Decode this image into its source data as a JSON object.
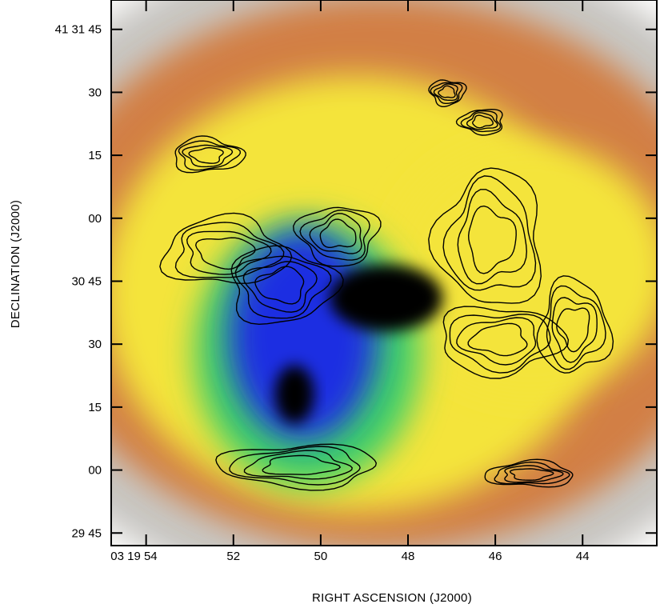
{
  "chart_data": {
    "type": "heatmap",
    "title": "",
    "xlabel": "RIGHT ASCENSION (J2000)",
    "ylabel": "DECLINATION (J2000)",
    "x_ticks": [
      {
        "label": "03 19 54",
        "ra_s": 54
      },
      {
        "label": "52",
        "ra_s": 52
      },
      {
        "label": "50",
        "ra_s": 50
      },
      {
        "label": "48",
        "ra_s": 48
      },
      {
        "label": "46",
        "ra_s": 46
      },
      {
        "label": "44",
        "ra_s": 44
      }
    ],
    "y_ticks": [
      {
        "label": "41 31 45",
        "dec_s": 105
      },
      {
        "label": "30",
        "dec_s": 90
      },
      {
        "label": "15",
        "dec_s": 75
      },
      {
        "label": "00",
        "dec_s": 60
      },
      {
        "label": "30 45",
        "dec_s": 45
      },
      {
        "label": "30",
        "dec_s": 30
      },
      {
        "label": "15",
        "dec_s": 15
      },
      {
        "label": "00",
        "dec_s": 0
      },
      {
        "label": "29 45",
        "dec_s": -15
      }
    ],
    "xlim": [
      54.8,
      42.3
    ],
    "ylim": [
      -18,
      112
    ],
    "colors": {
      "background": "#ffffff",
      "faint": "#c8c6c2",
      "outer": "#d27f45",
      "middle": "#f4e43a",
      "inner": "#3dd06a",
      "core": "#1f2fe2",
      "peak": "#000000",
      "contour": "#000000"
    },
    "emission_blobs": [
      {
        "ra": 48.6,
        "dec": 47,
        "rx": 9.5,
        "ry": 80,
        "level": "faint"
      },
      {
        "ra": 48.6,
        "dec": 47,
        "rx": 8.0,
        "ry": 66,
        "level": "outer"
      },
      {
        "ra": 49.2,
        "dec": 42,
        "rx": 5.8,
        "ry": 52,
        "level": "middle"
      },
      {
        "ra": 45.2,
        "dec": 48,
        "rx": 3.2,
        "ry": 30,
        "level": "middle"
      },
      {
        "ra": 50.3,
        "dec": 28,
        "rx": 2.6,
        "ry": 32,
        "level": "inner"
      },
      {
        "ra": 50.4,
        "dec": 32,
        "rx": 1.7,
        "ry": 25,
        "level": "core"
      },
      {
        "ra": 48.5,
        "dec": 41,
        "rx": 1.3,
        "ry": 8,
        "level": "peak"
      },
      {
        "ra": 50.6,
        "dec": 18,
        "rx": 0.45,
        "ry": 7,
        "level": "peak"
      }
    ],
    "contour_regions": [
      {
        "ra": 52.2,
        "dec": 52,
        "rx": 1.4,
        "ry": 8
      },
      {
        "ra": 50.9,
        "dec": 44,
        "rx": 1.2,
        "ry": 9
      },
      {
        "ra": 49.6,
        "dec": 56,
        "rx": 0.9,
        "ry": 7
      },
      {
        "ra": 46.1,
        "dec": 55,
        "rx": 1.2,
        "ry": 16
      },
      {
        "ra": 44.2,
        "dec": 34,
        "rx": 0.8,
        "ry": 11
      },
      {
        "ra": 45.9,
        "dec": 31,
        "rx": 1.4,
        "ry": 8
      },
      {
        "ra": 50.5,
        "dec": 1,
        "rx": 1.8,
        "ry": 5
      },
      {
        "ra": 45.2,
        "dec": -1,
        "rx": 1.0,
        "ry": 3
      },
      {
        "ra": 52.6,
        "dec": 75,
        "rx": 0.8,
        "ry": 4
      },
      {
        "ra": 47.1,
        "dec": 90,
        "rx": 0.4,
        "ry": 3
      },
      {
        "ra": 46.3,
        "dec": 83,
        "rx": 0.5,
        "ry": 3
      }
    ]
  }
}
